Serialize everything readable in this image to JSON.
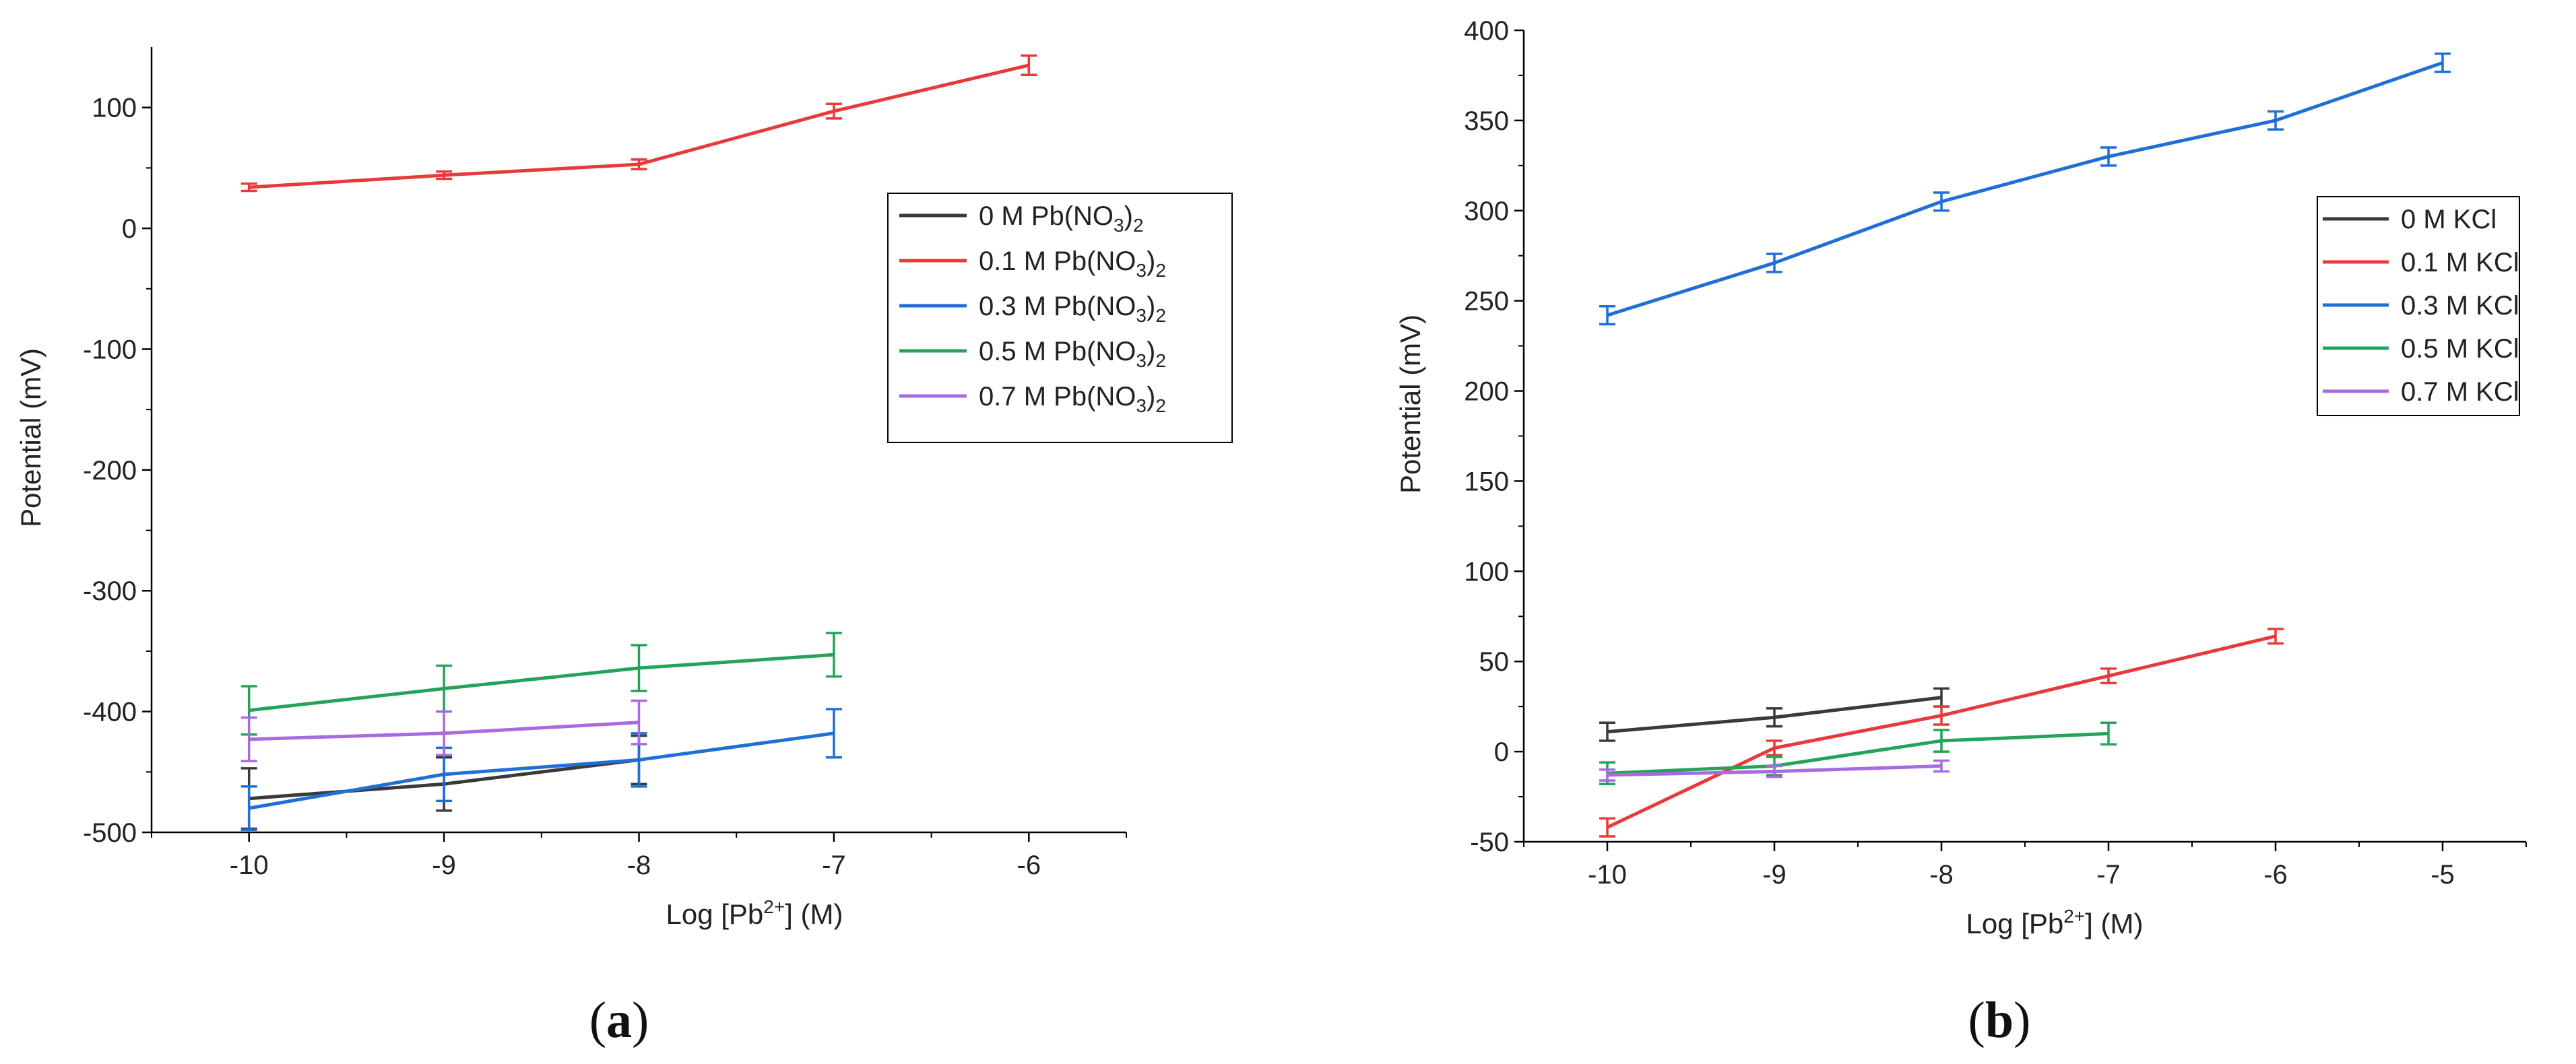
{
  "chart_data": [
    {
      "id": "a",
      "type": "line",
      "caption": "a",
      "xlabel": "Log [Pb2+] (M)",
      "xlabel_parts": {
        "pre": "Log [Pb",
        "sup": "2+",
        "post": "] (M)"
      },
      "ylabel": "Potential (mV)",
      "xlim": [
        -10.5,
        -5.5
      ],
      "ylim": [
        -500,
        150
      ],
      "xticks": [
        -10,
        -9,
        -8,
        -7,
        -6
      ],
      "xtick_labels": [
        "-10",
        "-9",
        "-8",
        "-7",
        "-6"
      ],
      "yticks": [
        -500,
        -400,
        -300,
        -200,
        -100,
        0,
        100
      ],
      "ytick_labels": [
        "-500",
        "-400",
        "-300",
        "-200",
        "-100",
        "0",
        "100"
      ],
      "legend_position": "top-right",
      "series": [
        {
          "name": "0 M Pb(NO3)2",
          "label": {
            "pre": "0 M Pb(NO",
            "sub1": "3",
            "mid": ")",
            "sub2": "2"
          },
          "color": "#3a3a3a",
          "x": [
            -10,
            -9,
            -8
          ],
          "y": [
            -472,
            -460,
            -440
          ],
          "err": [
            25,
            22,
            20
          ]
        },
        {
          "name": "0.1 M Pb(NO3)2",
          "label": {
            "pre": "0.1 M Pb(NO",
            "sub1": "3",
            "mid": ")",
            "sub2": "2"
          },
          "color": "#e8393b",
          "x": [
            -10,
            -9,
            -8,
            -7,
            -6
          ],
          "y": [
            34,
            44,
            53,
            97,
            135
          ],
          "err": [
            3,
            3,
            4,
            6,
            8
          ]
        },
        {
          "name": "0.3 M Pb(NO3)2",
          "label": {
            "pre": "0.3 M Pb(NO",
            "sub1": "3",
            "mid": ")",
            "sub2": "2"
          },
          "color": "#1f6fd6",
          "x": [
            -10,
            -9,
            -8,
            -7
          ],
          "y": [
            -480,
            -452,
            -440,
            -418
          ],
          "err": [
            18,
            22,
            22,
            20
          ]
        },
        {
          "name": "0.5 M Pb(NO3)2",
          "label": {
            "pre": "0.5 M Pb(NO",
            "sub1": "3",
            "mid": ")",
            "sub2": "2"
          },
          "color": "#25a35a",
          "x": [
            -10,
            -9,
            -8,
            -7
          ],
          "y": [
            -399,
            -381,
            -364,
            -353
          ],
          "err": [
            20,
            19,
            19,
            18
          ]
        },
        {
          "name": "0.7 M Pb(NO3)2",
          "label": {
            "pre": "0.7 M Pb(NO",
            "sub1": "3",
            "mid": ")",
            "sub2": "2"
          },
          "color": "#a86ae0",
          "x": [
            -10,
            -9,
            -8
          ],
          "y": [
            -423,
            -418,
            -409
          ],
          "err": [
            18,
            18,
            18
          ]
        }
      ]
    },
    {
      "id": "b",
      "type": "line",
      "caption": "b",
      "xlabel": "Log [Pb2+] (M)",
      "xlabel_parts": {
        "pre": "Log [Pb",
        "sup": "2+",
        "post": "] (M)"
      },
      "ylabel": "Potential (mV)",
      "xlim": [
        -10.5,
        -4.5
      ],
      "ylim": [
        -50,
        400
      ],
      "xticks": [
        -10,
        -9,
        -8,
        -7,
        -6,
        -5
      ],
      "xtick_labels": [
        "-10",
        "-9",
        "-8",
        "-7",
        "-6",
        "-5"
      ],
      "yticks": [
        -50,
        0,
        50,
        100,
        150,
        200,
        250,
        300,
        350,
        400
      ],
      "ytick_labels": [
        "-50",
        "0",
        "50",
        "100",
        "150",
        "200",
        "250",
        "300",
        "350",
        "400"
      ],
      "legend_position": "top-right",
      "series": [
        {
          "name": "0 M KCl",
          "label": {
            "pre": "0 M KCl",
            "sub1": "",
            "mid": "",
            "sub2": ""
          },
          "color": "#3a3a3a",
          "x": [
            -10,
            -9,
            -8
          ],
          "y": [
            11,
            19,
            30
          ],
          "err": [
            5,
            5,
            5
          ]
        },
        {
          "name": "0.1 M KCl",
          "label": {
            "pre": "0.1 M KCl",
            "sub1": "",
            "mid": "",
            "sub2": ""
          },
          "color": "#e8393b",
          "x": [
            -10,
            -9,
            -8,
            -7,
            -6
          ],
          "y": [
            -42,
            2,
            20,
            42,
            64
          ],
          "err": [
            5,
            4,
            5,
            4,
            4
          ]
        },
        {
          "name": "0.3 M KCl",
          "label": {
            "pre": "0.3 M KCl",
            "sub1": "",
            "mid": "",
            "sub2": ""
          },
          "color": "#1f6fd6",
          "x": [
            -10,
            -9,
            -8,
            -7,
            -6,
            -5
          ],
          "y": [
            242,
            271,
            305,
            330,
            350,
            382
          ],
          "err": [
            5,
            5,
            5,
            5,
            5,
            5
          ]
        },
        {
          "name": "0.5 M KCl",
          "label": {
            "pre": "0.5 M KCl",
            "sub1": "",
            "mid": "",
            "sub2": ""
          },
          "color": "#25a35a",
          "x": [
            -10,
            -9,
            -8,
            -7
          ],
          "y": [
            -12,
            -8,
            6,
            10
          ],
          "err": [
            6,
            5,
            6,
            6
          ]
        },
        {
          "name": "0.7 M KCl",
          "label": {
            "pre": "0.7 M KCl",
            "sub1": "",
            "mid": "",
            "sub2": ""
          },
          "color": "#a86ae0",
          "x": [
            -10,
            -9,
            -8
          ],
          "y": [
            -13,
            -11,
            -8
          ],
          "err": [
            3,
            3,
            3
          ]
        }
      ]
    }
  ]
}
